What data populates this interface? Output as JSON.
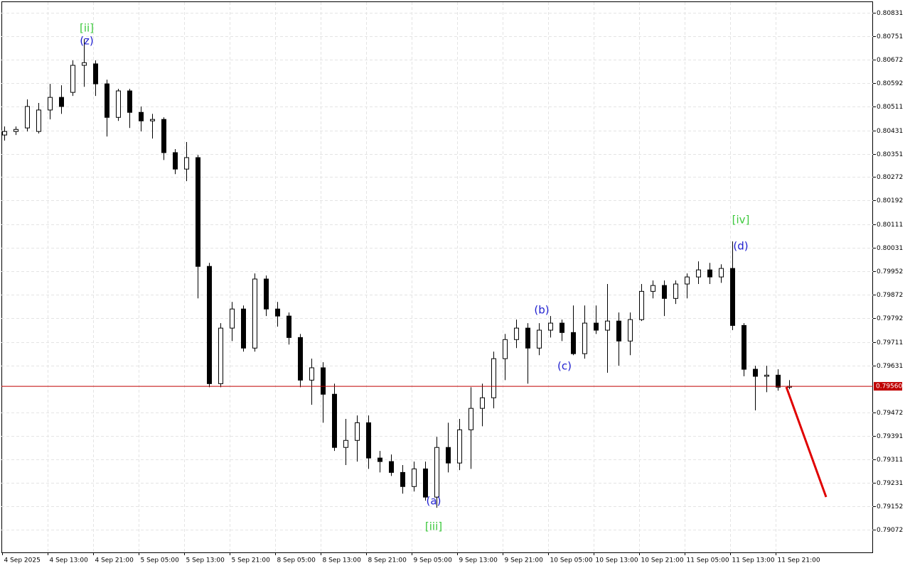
{
  "chart_data": {
    "type": "candlestick",
    "ylim": [
      0.78995,
      0.80867
    ],
    "yticks": [
      0.80831,
      0.80751,
      0.80672,
      0.80592,
      0.80511,
      0.80431,
      0.80351,
      0.80272,
      0.80192,
      0.80111,
      0.80031,
      0.79952,
      0.79872,
      0.79792,
      0.79711,
      0.79631,
      0.79472,
      0.79391,
      0.79311,
      0.79231,
      0.79152,
      0.79072
    ],
    "grid": true,
    "xlabels": [
      "4 Sep 2025",
      "4 Sep 13:00",
      "4 Sep 21:00",
      "5 Sep 05:00",
      "5 Sep 13:00",
      "5 Sep 21:00",
      "8 Sep 05:00",
      "8 Sep 13:00",
      "8 Sep 21:00",
      "9 Sep 05:00",
      "9 Sep 13:00",
      "9 Sep 21:00",
      "10 Sep 05:00",
      "10 Sep 13:00",
      "10 Sep 21:00",
      "11 Sep 05:00",
      "11 Sep 13:00",
      "11 Sep 21:00"
    ],
    "open": [
      0.80415,
      0.80427,
      0.80439,
      0.80427,
      0.805,
      0.80543,
      0.8056,
      0.80652,
      0.80657,
      0.80589,
      0.80475,
      0.80565,
      0.80492,
      0.80463,
      0.80468,
      0.80355,
      0.80299,
      0.80338,
      0.79968,
      0.79569,
      0.79758,
      0.79823,
      0.7969,
      0.79925,
      0.79823,
      0.79799,
      0.79726,
      0.79581,
      0.79623,
      0.79533,
      0.79352,
      0.79376,
      0.79436,
      0.79316,
      0.79304,
      0.79267,
      0.79219,
      0.79279,
      0.79183,
      0.79352,
      0.79299,
      0.79412,
      0.79485,
      0.79521,
      0.79654,
      0.79719,
      0.79758,
      0.7969,
      0.79751,
      0.79775,
      0.79743,
      0.79671,
      0.79775,
      0.79751,
      0.79782,
      0.79714,
      0.79787,
      0.79883,
      0.79903,
      0.79859,
      0.79908,
      0.79932,
      0.79956,
      0.79932,
      0.79961,
      0.79767,
      0.79618,
      0.79594,
      0.79598,
      0.79557
    ],
    "high": [
      0.80444,
      0.80444,
      0.80536,
      0.80524,
      0.80589,
      0.80584,
      0.80669,
      0.80741,
      0.80669,
      0.80603,
      0.80572,
      0.80572,
      0.80512,
      0.80487,
      0.80475,
      0.80367,
      0.80391,
      0.80347,
      0.7998,
      0.79775,
      0.79847,
      0.79835,
      0.79944,
      0.79937,
      0.79847,
      0.79811,
      0.79738,
      0.79654,
      0.79642,
      0.79569,
      0.79449,
      0.79461,
      0.79461,
      0.7934,
      0.79328,
      0.79292,
      0.79304,
      0.79304,
      0.79388,
      0.79436,
      0.79449,
      0.79557,
      0.79569,
      0.79678,
      0.79738,
      0.79787,
      0.79775,
      0.79775,
      0.79799,
      0.79787,
      0.79835,
      0.79835,
      0.79835,
      0.79908,
      0.79811,
      0.79811,
      0.79908,
      0.7992,
      0.7992,
      0.7992,
      0.79944,
      0.79985,
      0.7998,
      0.79975,
      0.80053,
      0.79775,
      0.7963,
      0.7963,
      0.79618,
      0.79581
    ],
    "low": [
      0.80396,
      0.80415,
      0.80427,
      0.8042,
      0.80468,
      0.80487,
      0.80548,
      0.80579,
      0.80548,
      0.8041,
      0.80463,
      0.80439,
      0.80427,
      0.80403,
      0.8033,
      0.80282,
      0.80258,
      0.79859,
      0.79557,
      0.79557,
      0.79714,
      0.79678,
      0.79678,
      0.79799,
      0.79763,
      0.79702,
      0.79557,
      0.79497,
      0.79436,
      0.7934,
      0.79292,
      0.79304,
      0.79279,
      0.79267,
      0.79255,
      0.79195,
      0.79202,
      0.79171,
      0.79147,
      0.79267,
      0.79275,
      0.79279,
      0.79424,
      0.79485,
      0.79581,
      0.7969,
      0.79569,
      0.79666,
      0.79726,
      0.79714,
      0.79666,
      0.79654,
      0.79738,
      0.79606,
      0.7963,
      0.79666,
      0.79782,
      0.79859,
      0.79799,
      0.7984,
      0.79859,
      0.79908,
      0.79908,
      0.79912,
      0.79751,
      0.79594,
      0.79478,
      0.7954,
      0.79545,
      0.7955
    ],
    "close": [
      0.80427,
      0.80434,
      0.80512,
      0.805,
      0.80543,
      0.80512,
      0.80652,
      0.80661,
      0.80589,
      0.80475,
      0.80565,
      0.80492,
      0.80463,
      0.80468,
      0.80355,
      0.80299,
      0.80338,
      0.79968,
      0.79569,
      0.79758,
      0.79823,
      0.7969,
      0.79925,
      0.79823,
      0.79799,
      0.79726,
      0.79581,
      0.79623,
      0.79533,
      0.79352,
      0.79376,
      0.79436,
      0.79316,
      0.79304,
      0.79267,
      0.79219,
      0.79279,
      0.79183,
      0.79352,
      0.79299,
      0.79412,
      0.79485,
      0.79521,
      0.79654,
      0.79719,
      0.79758,
      0.7969,
      0.79751,
      0.79775,
      0.79743,
      0.79671,
      0.79775,
      0.79751,
      0.79782,
      0.79714,
      0.79787,
      0.79883,
      0.79903,
      0.79859,
      0.79908,
      0.79932,
      0.79956,
      0.79932,
      0.79961,
      0.79767,
      0.79618,
      0.79594,
      0.79598,
      0.79557,
      0.7956
    ],
    "current_price": {
      "value": 0.7956,
      "label": "0.79560"
    },
    "price_color": "#c00000",
    "annotations": [
      {
        "text": "[ii]",
        "color": "#3cc83c"
      },
      {
        "text": "(z)",
        "color": "#2020d0"
      },
      {
        "text": "(a)",
        "color": "#2020d0"
      },
      {
        "text": "[iii]",
        "color": "#3cc83c"
      },
      {
        "text": "(b)",
        "color": "#2020d0"
      },
      {
        "text": "(c)",
        "color": "#2020d0"
      },
      {
        "text": "[iv]",
        "color": "#3cc83c"
      },
      {
        "text": "(d)",
        "color": "#2020d0"
      }
    ]
  }
}
